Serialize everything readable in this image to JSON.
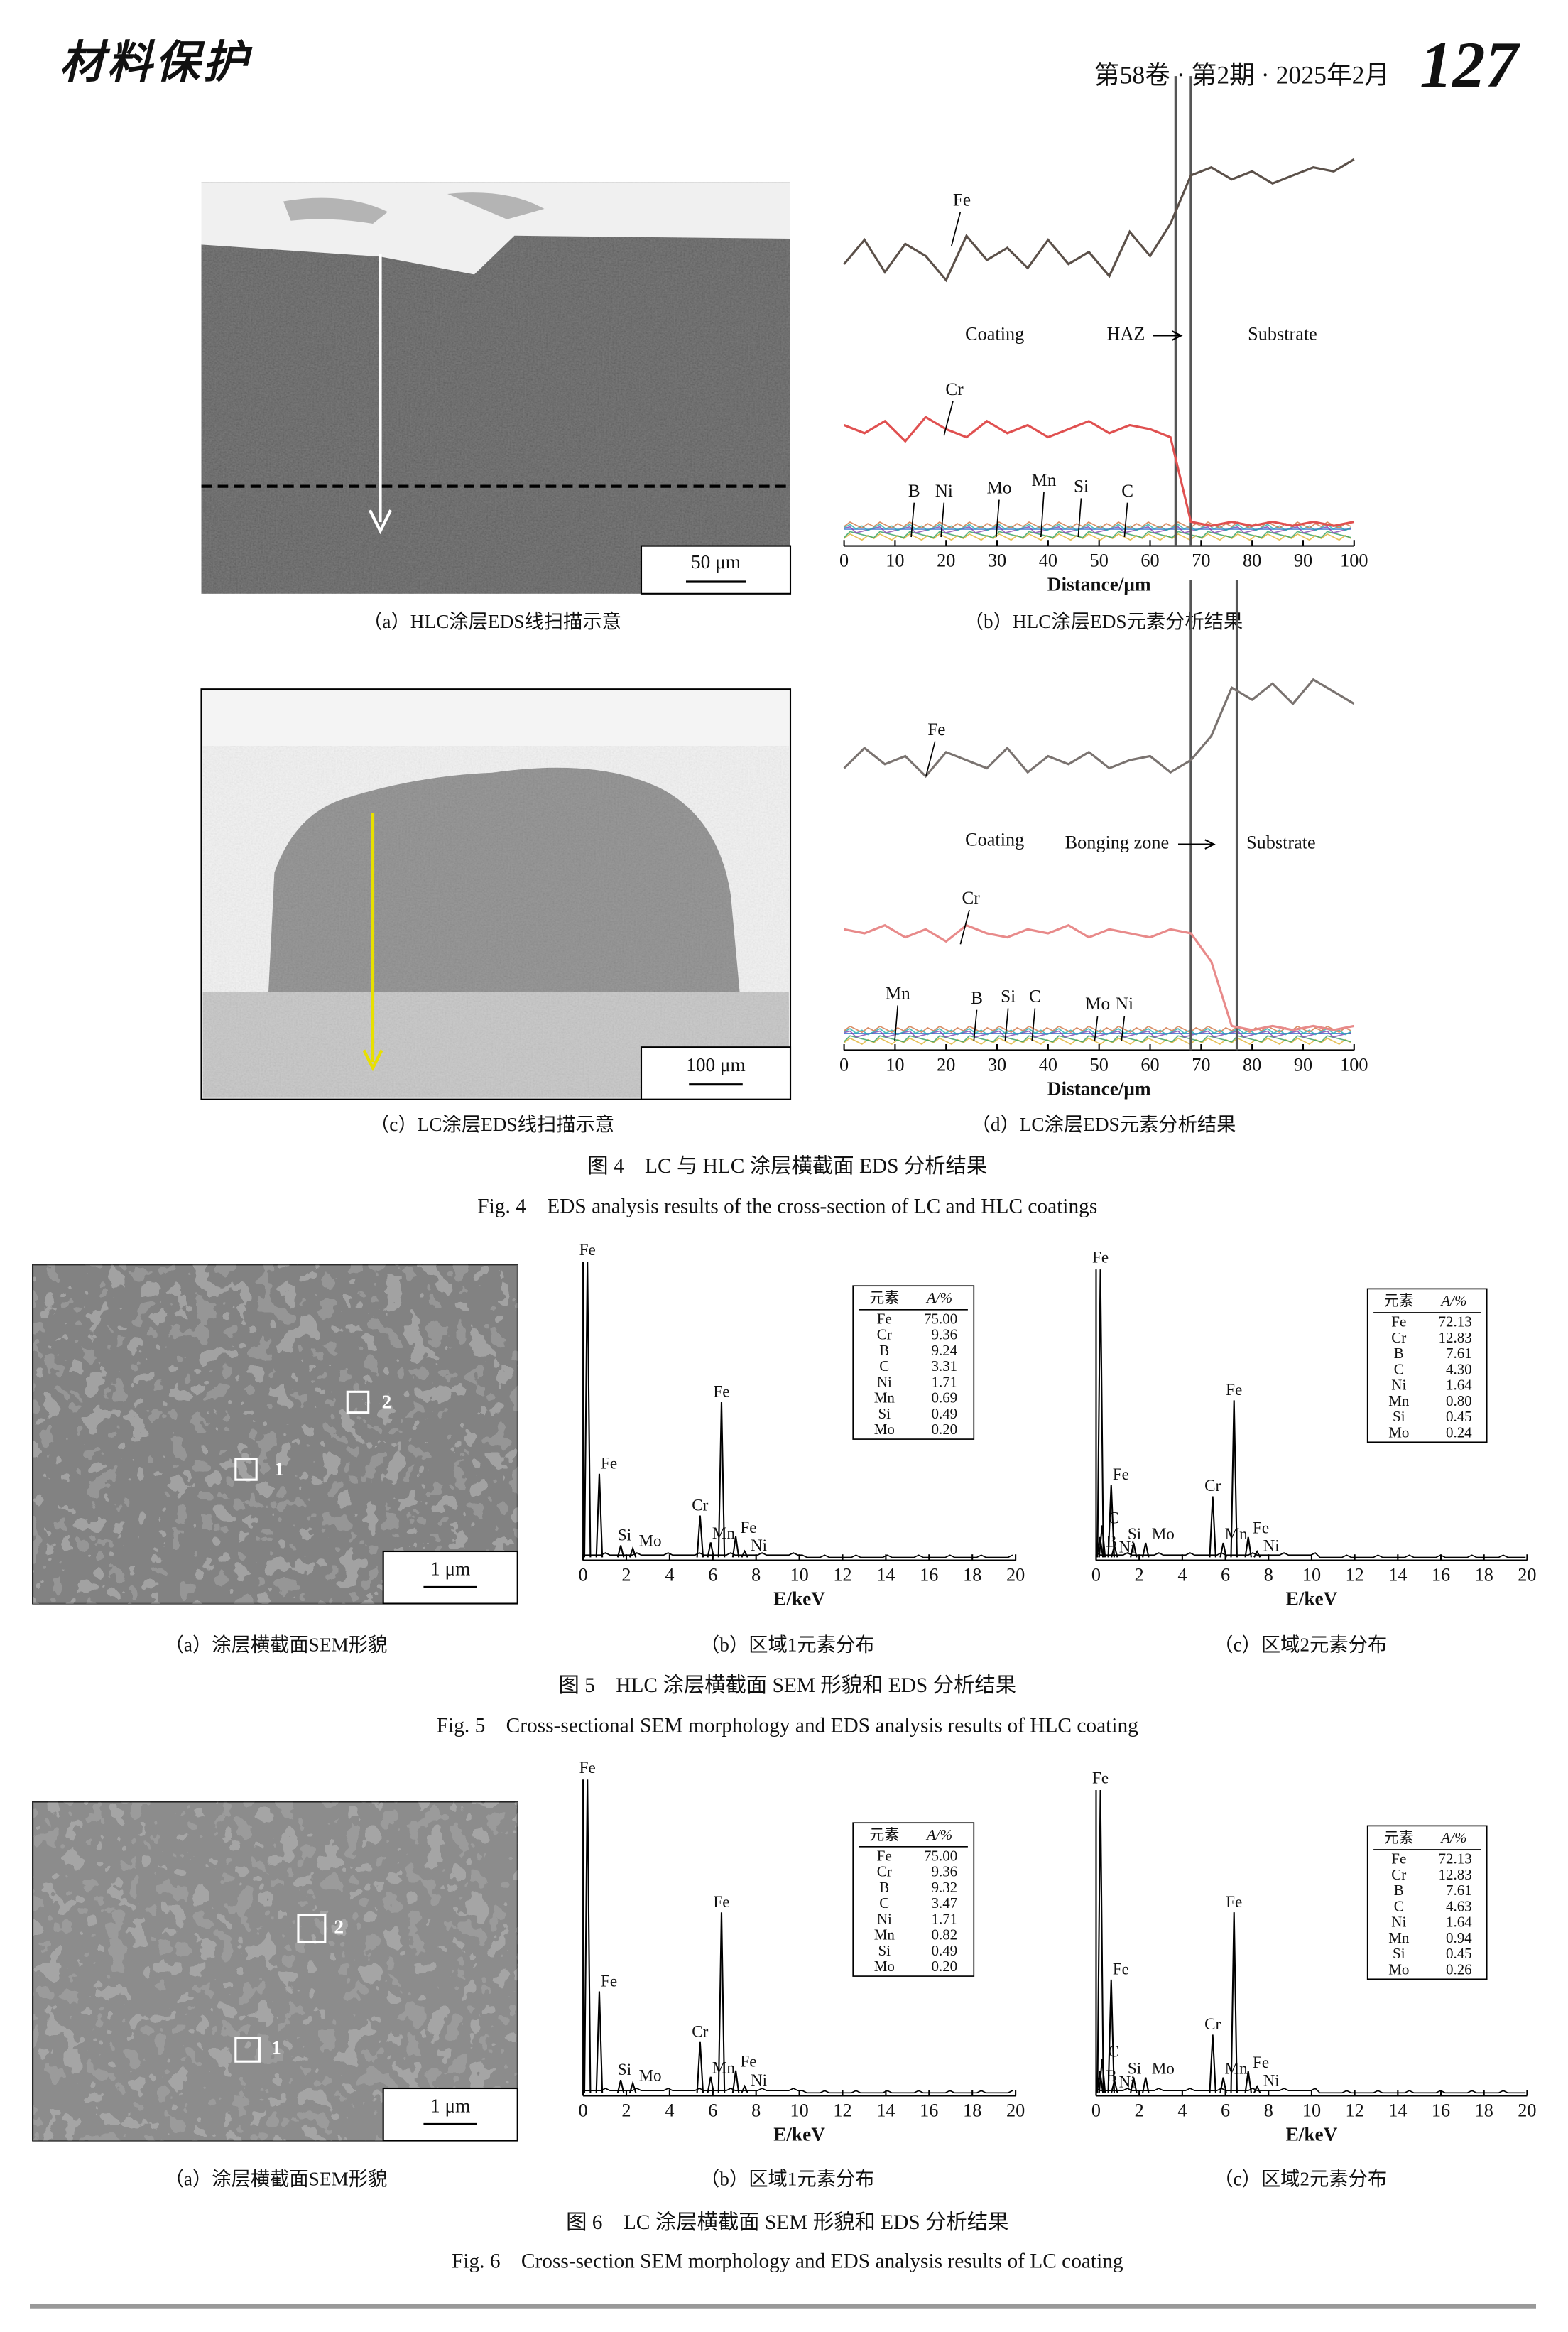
{
  "header": {
    "journal": "材料保护",
    "issue": "第58卷 · 第2期 · 2025年2月",
    "page": "127"
  },
  "figure4": {
    "title_cn": "图 4　LC 与 HLC 涂层横截面 EDS 分析结果",
    "title_en": "Fig. 4　EDS analysis results of the cross-section of LC and HLC coatings",
    "panel_a": {
      "caption": "（a）HLC涂层EDS线扫描示意",
      "scale_bar": "50 μm"
    },
    "panel_b": {
      "caption": "（b）HLC涂层EDS元素分析结果",
      "chart": {
        "type": "line",
        "xlim": [
          0,
          100
        ],
        "xticks": [
          0,
          10,
          20,
          30,
          40,
          50,
          60,
          70,
          80,
          90,
          100
        ],
        "xlabel": "Distance/μm",
        "ylim": [
          0,
          100
        ],
        "x": [
          0,
          4,
          8,
          12,
          16,
          20,
          24,
          28,
          32,
          36,
          40,
          44,
          48,
          52,
          56,
          60,
          64,
          68,
          72,
          76,
          80,
          84,
          88,
          92,
          96,
          100
        ],
        "series": [
          {
            "name": "Fe",
            "color": "#5b5049",
            "values": [
              70,
              76,
              68,
              75,
              72,
              66,
              77,
              71,
              74,
              69,
              76,
              70,
              73,
              67,
              78,
              72,
              80,
              92,
              94,
              91,
              93,
              90,
              92,
              94,
              93,
              96
            ]
          },
          {
            "name": "Cr",
            "color": "#e05050",
            "values": [
              30,
              28,
              31,
              26,
              32,
              29,
              27,
              31,
              28,
              30,
              27,
              29,
              31,
              28,
              30,
              29,
              27,
              6,
              5,
              6,
              5,
              6,
              5,
              6,
              5,
              6
            ]
          }
        ],
        "zones": [
          "Coating",
          "HAZ",
          "Substrate"
        ],
        "boundaries": [
          65,
          68
        ],
        "minor_elements": [
          "B",
          "Ni",
          "Mo",
          "Mn",
          "Si",
          "C"
        ]
      }
    },
    "panel_c": {
      "caption": "（c）LC涂层EDS线扫描示意",
      "scale_bar": "100 μm"
    },
    "panel_d": {
      "caption": "（d）LC涂层EDS元素分析结果",
      "chart": {
        "type": "line",
        "xlim": [
          0,
          100
        ],
        "xticks": [
          0,
          10,
          20,
          30,
          40,
          50,
          60,
          70,
          80,
          90,
          100
        ],
        "xlabel": "Distance/μm",
        "ylim": [
          0,
          100
        ],
        "x": [
          0,
          4,
          8,
          12,
          16,
          20,
          24,
          28,
          32,
          36,
          40,
          44,
          48,
          52,
          56,
          60,
          64,
          68,
          72,
          76,
          80,
          84,
          88,
          92,
          96,
          100
        ],
        "series": [
          {
            "name": "Fe",
            "color": "#7a7370",
            "values": [
              70,
              75,
              71,
              73,
              68,
              74,
              72,
              70,
              75,
              69,
              73,
              71,
              74,
              70,
              72,
              73,
              69,
              72,
              78,
              90,
              87,
              91,
              86,
              92,
              89,
              86
            ]
          },
          {
            "name": "Cr",
            "color": "#e88a8a",
            "values": [
              30,
              29,
              31,
              28,
              30,
              27,
              31,
              29,
              28,
              30,
              29,
              31,
              28,
              30,
              29,
              28,
              30,
              29,
              22,
              6,
              5,
              6,
              5,
              6,
              5,
              6
            ]
          }
        ],
        "zones": [
          "Coating",
          "Bonging zone",
          "Substrate"
        ],
        "boundaries": [
          68,
          77
        ],
        "minor_elements": [
          "Mn",
          "B",
          "Si",
          "C",
          "Mo",
          "Ni"
        ]
      }
    }
  },
  "figure5": {
    "title_cn": "图 5　HLC 涂层横截面 SEM 形貌和 EDS 分析结果",
    "title_en": "Fig. 5　Cross-sectional SEM morphology and EDS analysis results of HLC coating",
    "panel_a": {
      "caption": "（a）涂层横截面SEM形貌",
      "scale_bar": "1 μm",
      "regions": [
        "1",
        "2"
      ]
    },
    "panel_b": {
      "caption": "（b）区域1元素分布",
      "spectrum": {
        "type": "spectrum",
        "xlim": [
          0,
          20
        ],
        "xticks": [
          0,
          2,
          4,
          6,
          8,
          10,
          12,
          14,
          16,
          18,
          20
        ],
        "xlabel": "E/keV",
        "ylim": [
          0,
          100
        ],
        "peaks": [
          {
            "label": "Fe",
            "x": 0.2,
            "y": 100
          },
          {
            "label": "Fe",
            "x": 0.75,
            "y": 29
          },
          {
            "label": "Si",
            "x": 1.74,
            "y": 5
          },
          {
            "label": "Mo",
            "x": 2.3,
            "y": 4
          },
          {
            "label": "Cr",
            "x": 5.41,
            "y": 15
          },
          {
            "label": "Mn",
            "x": 5.9,
            "y": 6
          },
          {
            "label": "Fe",
            "x": 6.4,
            "y": 53
          },
          {
            "label": "Fe",
            "x": 7.06,
            "y": 8
          },
          {
            "label": "Ni",
            "x": 7.47,
            "y": 3
          }
        ],
        "table": {
          "header": [
            "元素",
            "A/%"
          ],
          "rows": [
            [
              "Fe",
              "75.00"
            ],
            [
              "Cr",
              "9.36"
            ],
            [
              "B",
              "9.24"
            ],
            [
              "C",
              "3.31"
            ],
            [
              "Ni",
              "1.71"
            ],
            [
              "Mn",
              "0.69"
            ],
            [
              "Si",
              "0.49"
            ],
            [
              "Mo",
              "0.20"
            ]
          ]
        }
      }
    },
    "panel_c": {
      "caption": "（c）区域2元素分布",
      "spectrum": {
        "type": "spectrum",
        "xlim": [
          0,
          20
        ],
        "xticks": [
          0,
          2,
          4,
          6,
          8,
          10,
          12,
          14,
          16,
          18,
          20
        ],
        "xlabel": "E/keV",
        "ylim": [
          0,
          100
        ],
        "peaks": [
          {
            "label": "Fe",
            "x": 0.2,
            "y": 100
          },
          {
            "label": "C",
            "x": 0.28,
            "y": 12
          },
          {
            "label": "B",
            "x": 0.18,
            "y": 8
          },
          {
            "label": "Fe",
            "x": 0.7,
            "y": 26
          },
          {
            "label": "Ni",
            "x": 0.85,
            "y": 5
          },
          {
            "label": "Si",
            "x": 1.74,
            "y": 6
          },
          {
            "label": "Mo",
            "x": 2.3,
            "y": 6
          },
          {
            "label": "Cr",
            "x": 5.41,
            "y": 22
          },
          {
            "label": "Mn",
            "x": 5.9,
            "y": 6
          },
          {
            "label": "Fe",
            "x": 6.4,
            "y": 55
          },
          {
            "label": "Fe",
            "x": 7.06,
            "y": 8
          },
          {
            "label": "Ni",
            "x": 7.47,
            "y": 3
          }
        ],
        "table": {
          "header": [
            "元素",
            "A/%"
          ],
          "rows": [
            [
              "Fe",
              "72.13"
            ],
            [
              "Cr",
              "12.83"
            ],
            [
              "B",
              "7.61"
            ],
            [
              "C",
              "4.30"
            ],
            [
              "Ni",
              "1.64"
            ],
            [
              "Mn",
              "0.80"
            ],
            [
              "Si",
              "0.45"
            ],
            [
              "Mo",
              "0.24"
            ]
          ]
        }
      }
    }
  },
  "figure6": {
    "title_cn": "图 6　LC 涂层横截面 SEM 形貌和 EDS 分析结果",
    "title_en": "Fig. 6　Cross-section SEM morphology and EDS analysis results of LC coating",
    "panel_a": {
      "caption": "（a）涂层横截面SEM形貌",
      "scale_bar": "1 μm",
      "regions": [
        "1",
        "2"
      ]
    },
    "panel_b": {
      "caption": "（b）区域1元素分布",
      "spectrum": {
        "type": "spectrum",
        "xlim": [
          0,
          20
        ],
        "xticks": [
          0,
          2,
          4,
          6,
          8,
          10,
          12,
          14,
          16,
          18,
          20
        ],
        "xlabel": "E/keV",
        "ylim": [
          0,
          100
        ],
        "peaks": [
          {
            "label": "Fe",
            "x": 0.2,
            "y": 100
          },
          {
            "label": "Fe",
            "x": 0.75,
            "y": 33
          },
          {
            "label": "Si",
            "x": 1.74,
            "y": 5
          },
          {
            "label": "Mo",
            "x": 2.3,
            "y": 4
          },
          {
            "label": "Cr",
            "x": 5.41,
            "y": 17
          },
          {
            "label": "Mn",
            "x": 5.9,
            "y": 6
          },
          {
            "label": "Fe",
            "x": 6.4,
            "y": 58
          },
          {
            "label": "Fe",
            "x": 7.06,
            "y": 8
          },
          {
            "label": "Ni",
            "x": 7.47,
            "y": 3
          }
        ],
        "table": {
          "header": [
            "元素",
            "A/%"
          ],
          "rows": [
            [
              "Fe",
              "75.00"
            ],
            [
              "Cr",
              "9.36"
            ],
            [
              "B",
              "9.32"
            ],
            [
              "C",
              "3.47"
            ],
            [
              "Ni",
              "1.71"
            ],
            [
              "Mn",
              "0.82"
            ],
            [
              "Si",
              "0.49"
            ],
            [
              "Mo",
              "0.20"
            ]
          ]
        }
      }
    },
    "panel_c": {
      "caption": "（c）区域2元素分布",
      "spectrum": {
        "type": "spectrum",
        "xlim": [
          0,
          20
        ],
        "xticks": [
          0,
          2,
          4,
          6,
          8,
          10,
          12,
          14,
          16,
          18,
          20
        ],
        "xlabel": "E/keV",
        "ylim": [
          0,
          100
        ],
        "peaks": [
          {
            "label": "Fe",
            "x": 0.2,
            "y": 100
          },
          {
            "label": "C",
            "x": 0.28,
            "y": 12
          },
          {
            "label": "B",
            "x": 0.18,
            "y": 8
          },
          {
            "label": "Fe",
            "x": 0.7,
            "y": 38
          },
          {
            "label": "Ni",
            "x": 0.85,
            "y": 5
          },
          {
            "label": "Si",
            "x": 1.74,
            "y": 6
          },
          {
            "label": "Mo",
            "x": 2.3,
            "y": 6
          },
          {
            "label": "Cr",
            "x": 5.41,
            "y": 20
          },
          {
            "label": "Mn",
            "x": 5.9,
            "y": 6
          },
          {
            "label": "Fe",
            "x": 6.4,
            "y": 60
          },
          {
            "label": "Fe",
            "x": 7.06,
            "y": 8
          },
          {
            "label": "Ni",
            "x": 7.47,
            "y": 3
          }
        ],
        "table": {
          "header": [
            "元素",
            "A/%"
          ],
          "rows": [
            [
              "Fe",
              "72.13"
            ],
            [
              "Cr",
              "12.83"
            ],
            [
              "B",
              "7.61"
            ],
            [
              "C",
              "4.63"
            ],
            [
              "Ni",
              "1.64"
            ],
            [
              "Mn",
              "0.94"
            ],
            [
              "Si",
              "0.45"
            ],
            [
              "Mo",
              "0.26"
            ]
          ]
        }
      }
    }
  }
}
